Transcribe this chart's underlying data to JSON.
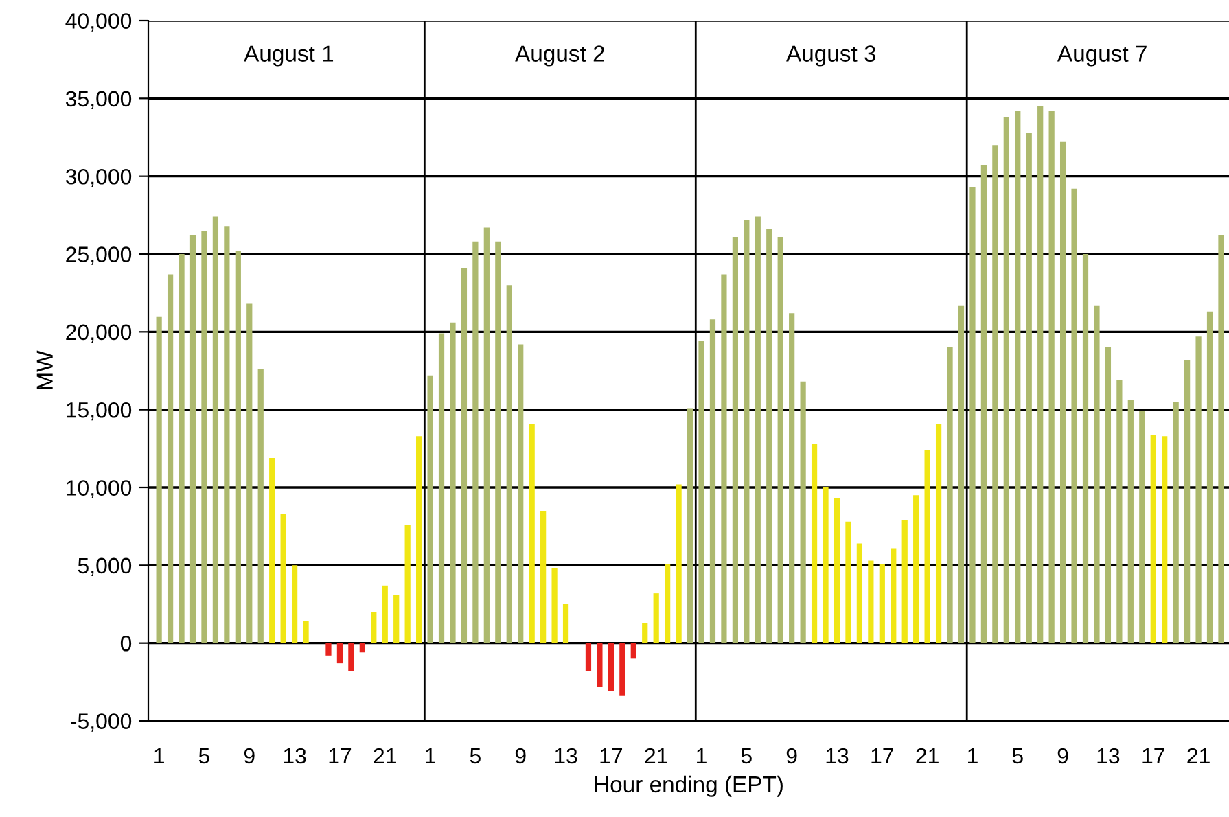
{
  "chart_data": {
    "type": "bar",
    "xlabel": "Hour ending (EPT)",
    "ylabel": "MW",
    "categories": [
      "1",
      null,
      null,
      null,
      "5",
      null,
      null,
      null,
      "9",
      null,
      null,
      null,
      "13",
      null,
      null,
      null,
      "17",
      null,
      null,
      null,
      "21",
      null,
      null,
      null,
      "1",
      null,
      null,
      null,
      "5",
      null,
      null,
      null,
      "9",
      null,
      null,
      null,
      "13",
      null,
      null,
      null,
      "17",
      null,
      null,
      null,
      "21",
      null,
      null,
      null,
      "1",
      null,
      null,
      null,
      "5",
      null,
      null,
      null,
      "9",
      null,
      null,
      null,
      "13",
      null,
      null,
      null,
      "17",
      null,
      null,
      null,
      "21",
      null,
      null,
      null,
      "1",
      null,
      null,
      null,
      "5",
      null,
      null,
      null,
      "9",
      null,
      null,
      null,
      "13",
      null,
      null,
      null,
      "17",
      null,
      null,
      null,
      "21",
      null,
      null
    ],
    "values": [
      21000,
      23700,
      25000,
      26200,
      26500,
      27400,
      26800,
      25200,
      21800,
      17600,
      11900,
      8300,
      5000,
      1400,
      0,
      -800,
      -1300,
      -1800,
      -600,
      2000,
      3700,
      3100,
      7600,
      13300,
      17200,
      19900,
      20600,
      24100,
      25800,
      26700,
      25800,
      23000,
      19200,
      14100,
      8500,
      4800,
      2500,
      0,
      -1800,
      -2800,
      -3100,
      -3400,
      -1000,
      1300,
      3200,
      5100,
      10200,
      15100,
      19400,
      20800,
      23700,
      26100,
      27200,
      27400,
      26600,
      26100,
      21200,
      16800,
      12800,
      10000,
      9300,
      7800,
      6400,
      5300,
      5100,
      6100,
      7900,
      9500,
      12400,
      14100,
      19000,
      21700,
      29300,
      30700,
      32000,
      33800,
      34200,
      32800,
      34500,
      34200,
      32200,
      29200,
      25000,
      21700,
      19000,
      16900,
      15600,
      14900,
      13400,
      13300,
      15500,
      18200,
      19700,
      21300,
      26200
    ],
    "colors": [
      "#adb96e",
      "#adb96e",
      "#adb96e",
      "#adb96e",
      "#adb96e",
      "#adb96e",
      "#adb96e",
      "#adb96e",
      "#adb96e",
      "#adb96e",
      "#f0e614",
      "#f0e614",
      "#f0e614",
      "#f0e614",
      "#f0e614",
      "#e8231e",
      "#e8231e",
      "#e8231e",
      "#e8231e",
      "#f0e614",
      "#f0e614",
      "#f0e614",
      "#f0e614",
      "#f0e614",
      "#adb96e",
      "#adb96e",
      "#adb96e",
      "#adb96e",
      "#adb96e",
      "#adb96e",
      "#adb96e",
      "#adb96e",
      "#adb96e",
      "#f0e614",
      "#f0e614",
      "#f0e614",
      "#f0e614",
      "#f0e614",
      "#e8231e",
      "#e8231e",
      "#e8231e",
      "#e8231e",
      "#e8231e",
      "#f0e614",
      "#f0e614",
      "#f0e614",
      "#f0e614",
      "#adb96e",
      "#adb96e",
      "#adb96e",
      "#adb96e",
      "#adb96e",
      "#adb96e",
      "#adb96e",
      "#adb96e",
      "#adb96e",
      "#adb96e",
      "#adb96e",
      "#f0e614",
      "#f0e614",
      "#f0e614",
      "#f0e614",
      "#f0e614",
      "#f0e614",
      "#f0e614",
      "#f0e614",
      "#f0e614",
      "#f0e614",
      "#f0e614",
      "#f0e614",
      "#adb96e",
      "#adb96e",
      "#adb96e",
      "#adb96e",
      "#adb96e",
      "#adb96e",
      "#adb96e",
      "#adb96e",
      "#adb96e",
      "#adb96e",
      "#adb96e",
      "#adb96e",
      "#adb96e",
      "#adb96e",
      "#adb96e",
      "#adb96e",
      "#adb96e",
      "#adb96e",
      "#f0e614",
      "#f0e614",
      "#adb96e",
      "#adb96e",
      "#adb96e",
      "#adb96e",
      "#adb96e"
    ],
    "ylim": [
      -5000,
      40000
    ],
    "yticks": [
      {
        "value": -5000,
        "label": "-5,000"
      },
      {
        "value": 0,
        "label": "0"
      },
      {
        "value": 5000,
        "label": "5,000"
      },
      {
        "value": 10000,
        "label": "10,000"
      },
      {
        "value": 15000,
        "label": "15,000"
      },
      {
        "value": 20000,
        "label": "20,000"
      },
      {
        "value": 25000,
        "label": "25,000"
      },
      {
        "value": 30000,
        "label": "30,000"
      },
      {
        "value": 35000,
        "label": "35,000"
      },
      {
        "value": 40000,
        "label": "40,000"
      }
    ],
    "annotations": [
      "August 1",
      "August 2",
      "August 3",
      "August 7"
    ],
    "grid": "y"
  }
}
